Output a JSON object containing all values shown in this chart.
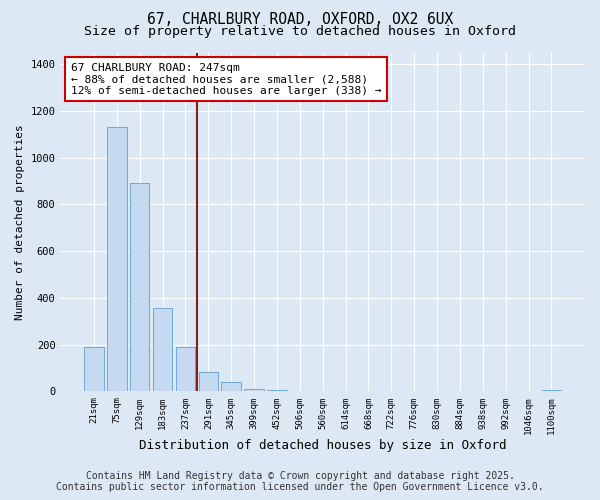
{
  "title_line1": "67, CHARLBURY ROAD, OXFORD, OX2 6UX",
  "title_line2": "Size of property relative to detached houses in Oxford",
  "xlabel": "Distribution of detached houses by size in Oxford",
  "ylabel": "Number of detached properties",
  "categories": [
    "21sqm",
    "75sqm",
    "129sqm",
    "183sqm",
    "237sqm",
    "291sqm",
    "345sqm",
    "399sqm",
    "452sqm",
    "506sqm",
    "560sqm",
    "614sqm",
    "668sqm",
    "722sqm",
    "776sqm",
    "830sqm",
    "884sqm",
    "938sqm",
    "992sqm",
    "1046sqm",
    "1100sqm"
  ],
  "values": [
    190,
    1130,
    890,
    355,
    190,
    85,
    40,
    10,
    5,
    0,
    0,
    0,
    0,
    0,
    0,
    0,
    0,
    0,
    0,
    0,
    5
  ],
  "bar_color": "#c5d9f1",
  "bar_edge_color": "#6fa8d6",
  "vline_color": "#8b1a1a",
  "vline_pos": 4.5,
  "annotation_text_line1": "67 CHARLBURY ROAD: 247sqm",
  "annotation_text_line2": "← 88% of detached houses are smaller (2,588)",
  "annotation_text_line3": "12% of semi-detached houses are larger (338) →",
  "ylim": [
    0,
    1450
  ],
  "yticks": [
    0,
    200,
    400,
    600,
    800,
    1000,
    1200,
    1400
  ],
  "bg_color": "#dce9f5",
  "plot_bg_color": "#dce9f5",
  "footer_line1": "Contains HM Land Registry data © Crown copyright and database right 2025.",
  "footer_line2": "Contains public sector information licensed under the Open Government Licence v3.0.",
  "grid_color": "#ffffff",
  "title_fontsize": 10.5,
  "subtitle_fontsize": 9.5,
  "annotation_fontsize": 8,
  "footer_fontsize": 7,
  "ylabel_fontsize": 8,
  "xlabel_fontsize": 9
}
